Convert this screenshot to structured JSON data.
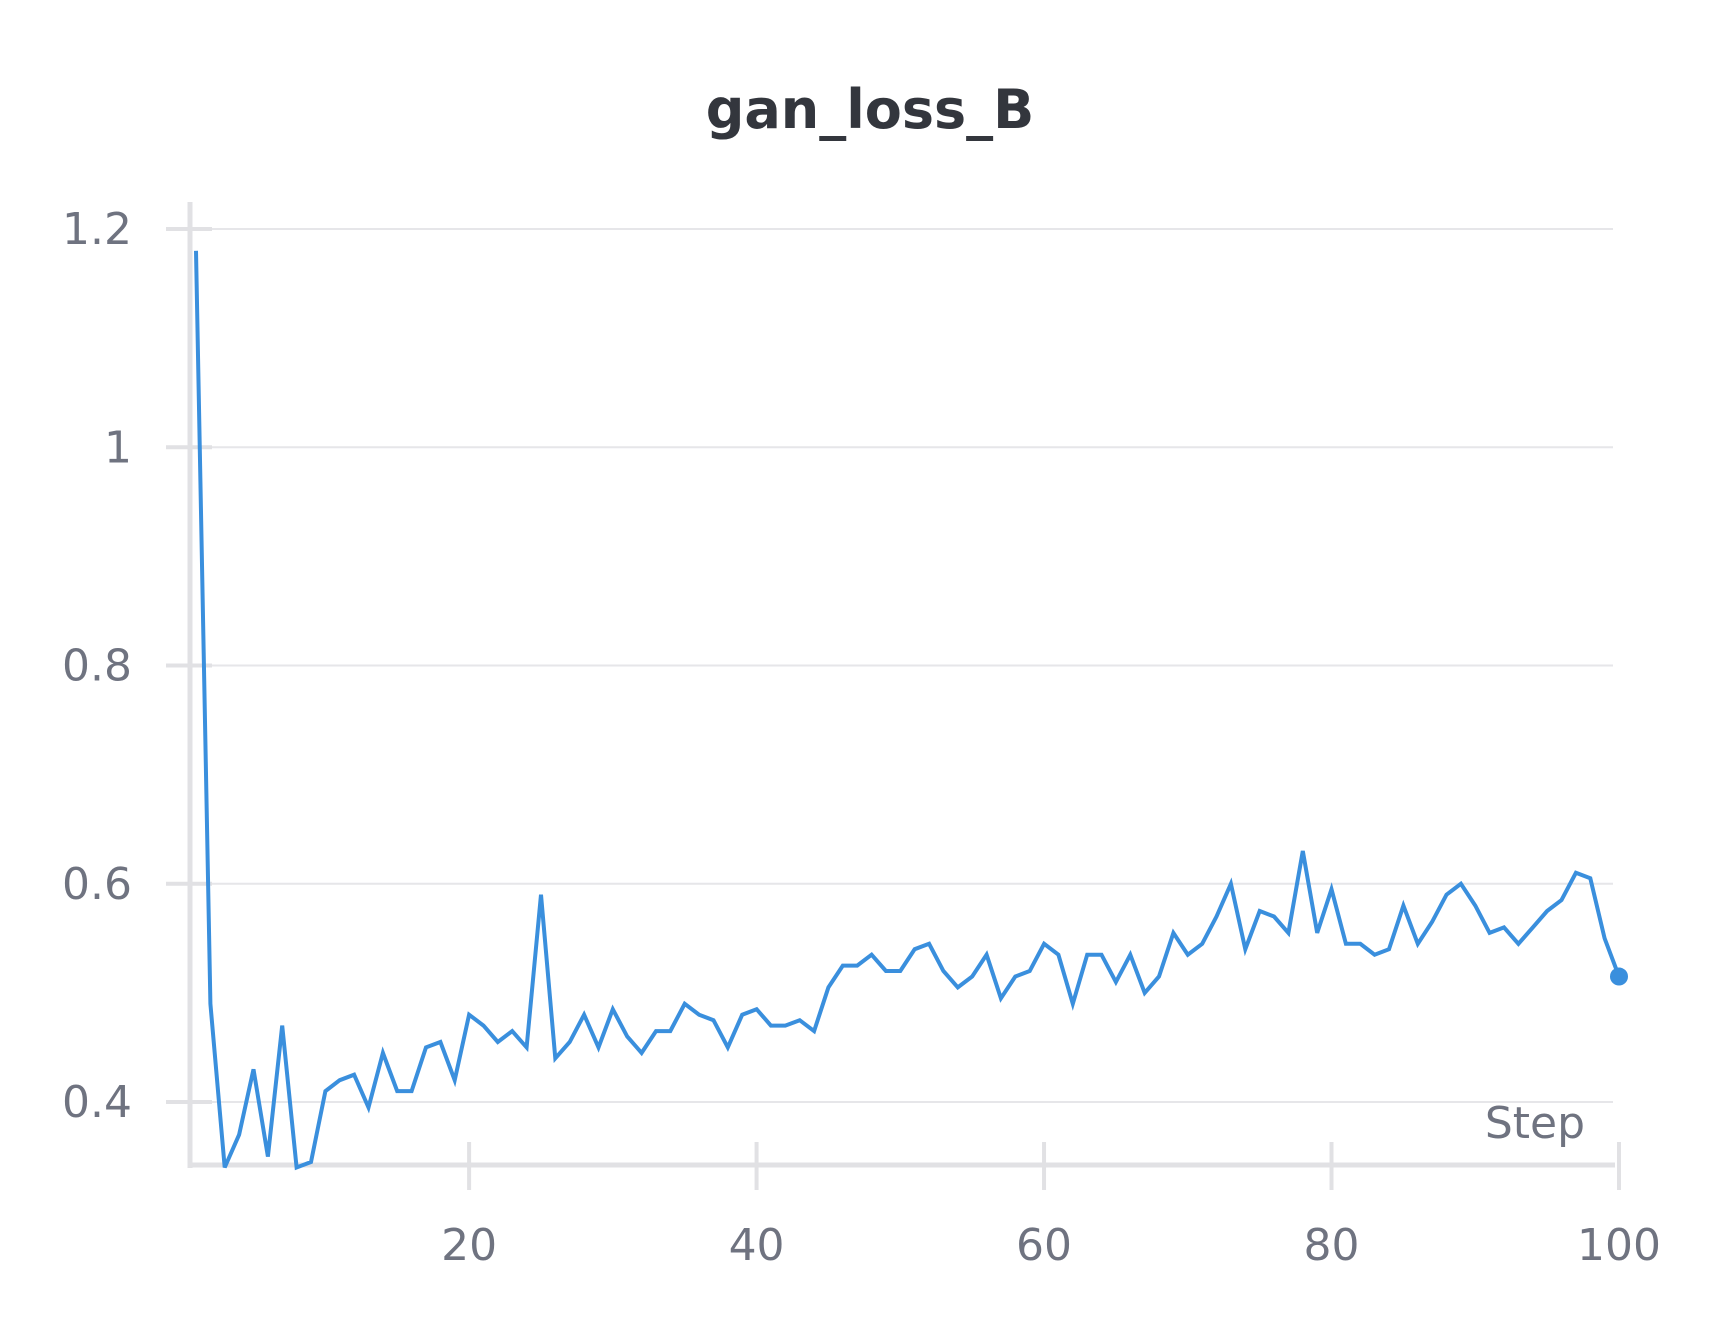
{
  "chart_data": {
    "type": "line",
    "title": "gan_loss_B",
    "xlabel": "Step",
    "ylabel": "",
    "xlim": [
      1,
      100
    ],
    "ylim": [
      0.34,
      1.225
    ],
    "x_ticks": [
      20,
      40,
      60,
      80,
      100
    ],
    "y_ticks": [
      0.4,
      0.6,
      0.8,
      1,
      1.2
    ],
    "y_tick_labels": [
      "0.4",
      "0.6",
      "0.8",
      "1",
      "1.2"
    ],
    "x_tick_labels": [
      "20",
      "40",
      "60",
      "80",
      "100"
    ],
    "grid": "horizontal",
    "series": [
      {
        "color": "#3a8fdd",
        "x": [
          1,
          2,
          3,
          4,
          5,
          6,
          7,
          8,
          9,
          10,
          11,
          12,
          13,
          14,
          15,
          16,
          17,
          18,
          19,
          20,
          21,
          22,
          23,
          24,
          25,
          26,
          27,
          28,
          29,
          30,
          31,
          32,
          33,
          34,
          35,
          36,
          37,
          38,
          39,
          40,
          41,
          42,
          43,
          44,
          45,
          46,
          47,
          48,
          49,
          50,
          51,
          52,
          53,
          54,
          55,
          56,
          57,
          58,
          59,
          60,
          61,
          62,
          63,
          64,
          65,
          66,
          67,
          68,
          69,
          70,
          71,
          72,
          73,
          74,
          75,
          76,
          77,
          78,
          79,
          80,
          81,
          82,
          83,
          84,
          85,
          86,
          87,
          88,
          89,
          90,
          91,
          92,
          93,
          94,
          95,
          96,
          97,
          98,
          99,
          100
        ],
        "values": [
          1.18,
          0.49,
          0.34,
          0.37,
          0.43,
          0.35,
          0.47,
          0.34,
          0.345,
          0.41,
          0.42,
          0.425,
          0.395,
          0.445,
          0.41,
          0.41,
          0.45,
          0.455,
          0.42,
          0.48,
          0.47,
          0.455,
          0.465,
          0.45,
          0.59,
          0.44,
          0.455,
          0.48,
          0.45,
          0.485,
          0.46,
          0.445,
          0.465,
          0.465,
          0.49,
          0.48,
          0.475,
          0.45,
          0.48,
          0.485,
          0.47,
          0.47,
          0.475,
          0.465,
          0.505,
          0.525,
          0.525,
          0.535,
          0.52,
          0.52,
          0.54,
          0.545,
          0.52,
          0.505,
          0.515,
          0.535,
          0.495,
          0.515,
          0.52,
          0.545,
          0.535,
          0.49,
          0.535,
          0.535,
          0.51,
          0.535,
          0.5,
          0.515,
          0.555,
          0.535,
          0.545,
          0.57,
          0.6,
          0.54,
          0.575,
          0.57,
          0.555,
          0.63,
          0.555,
          0.595,
          0.545,
          0.545,
          0.535,
          0.54,
          0.58,
          0.545,
          0.565,
          0.59,
          0.6,
          0.58,
          0.555,
          0.56,
          0.545,
          0.56,
          0.575,
          0.585,
          0.61,
          0.605,
          0.55,
          0.515
        ]
      }
    ]
  }
}
